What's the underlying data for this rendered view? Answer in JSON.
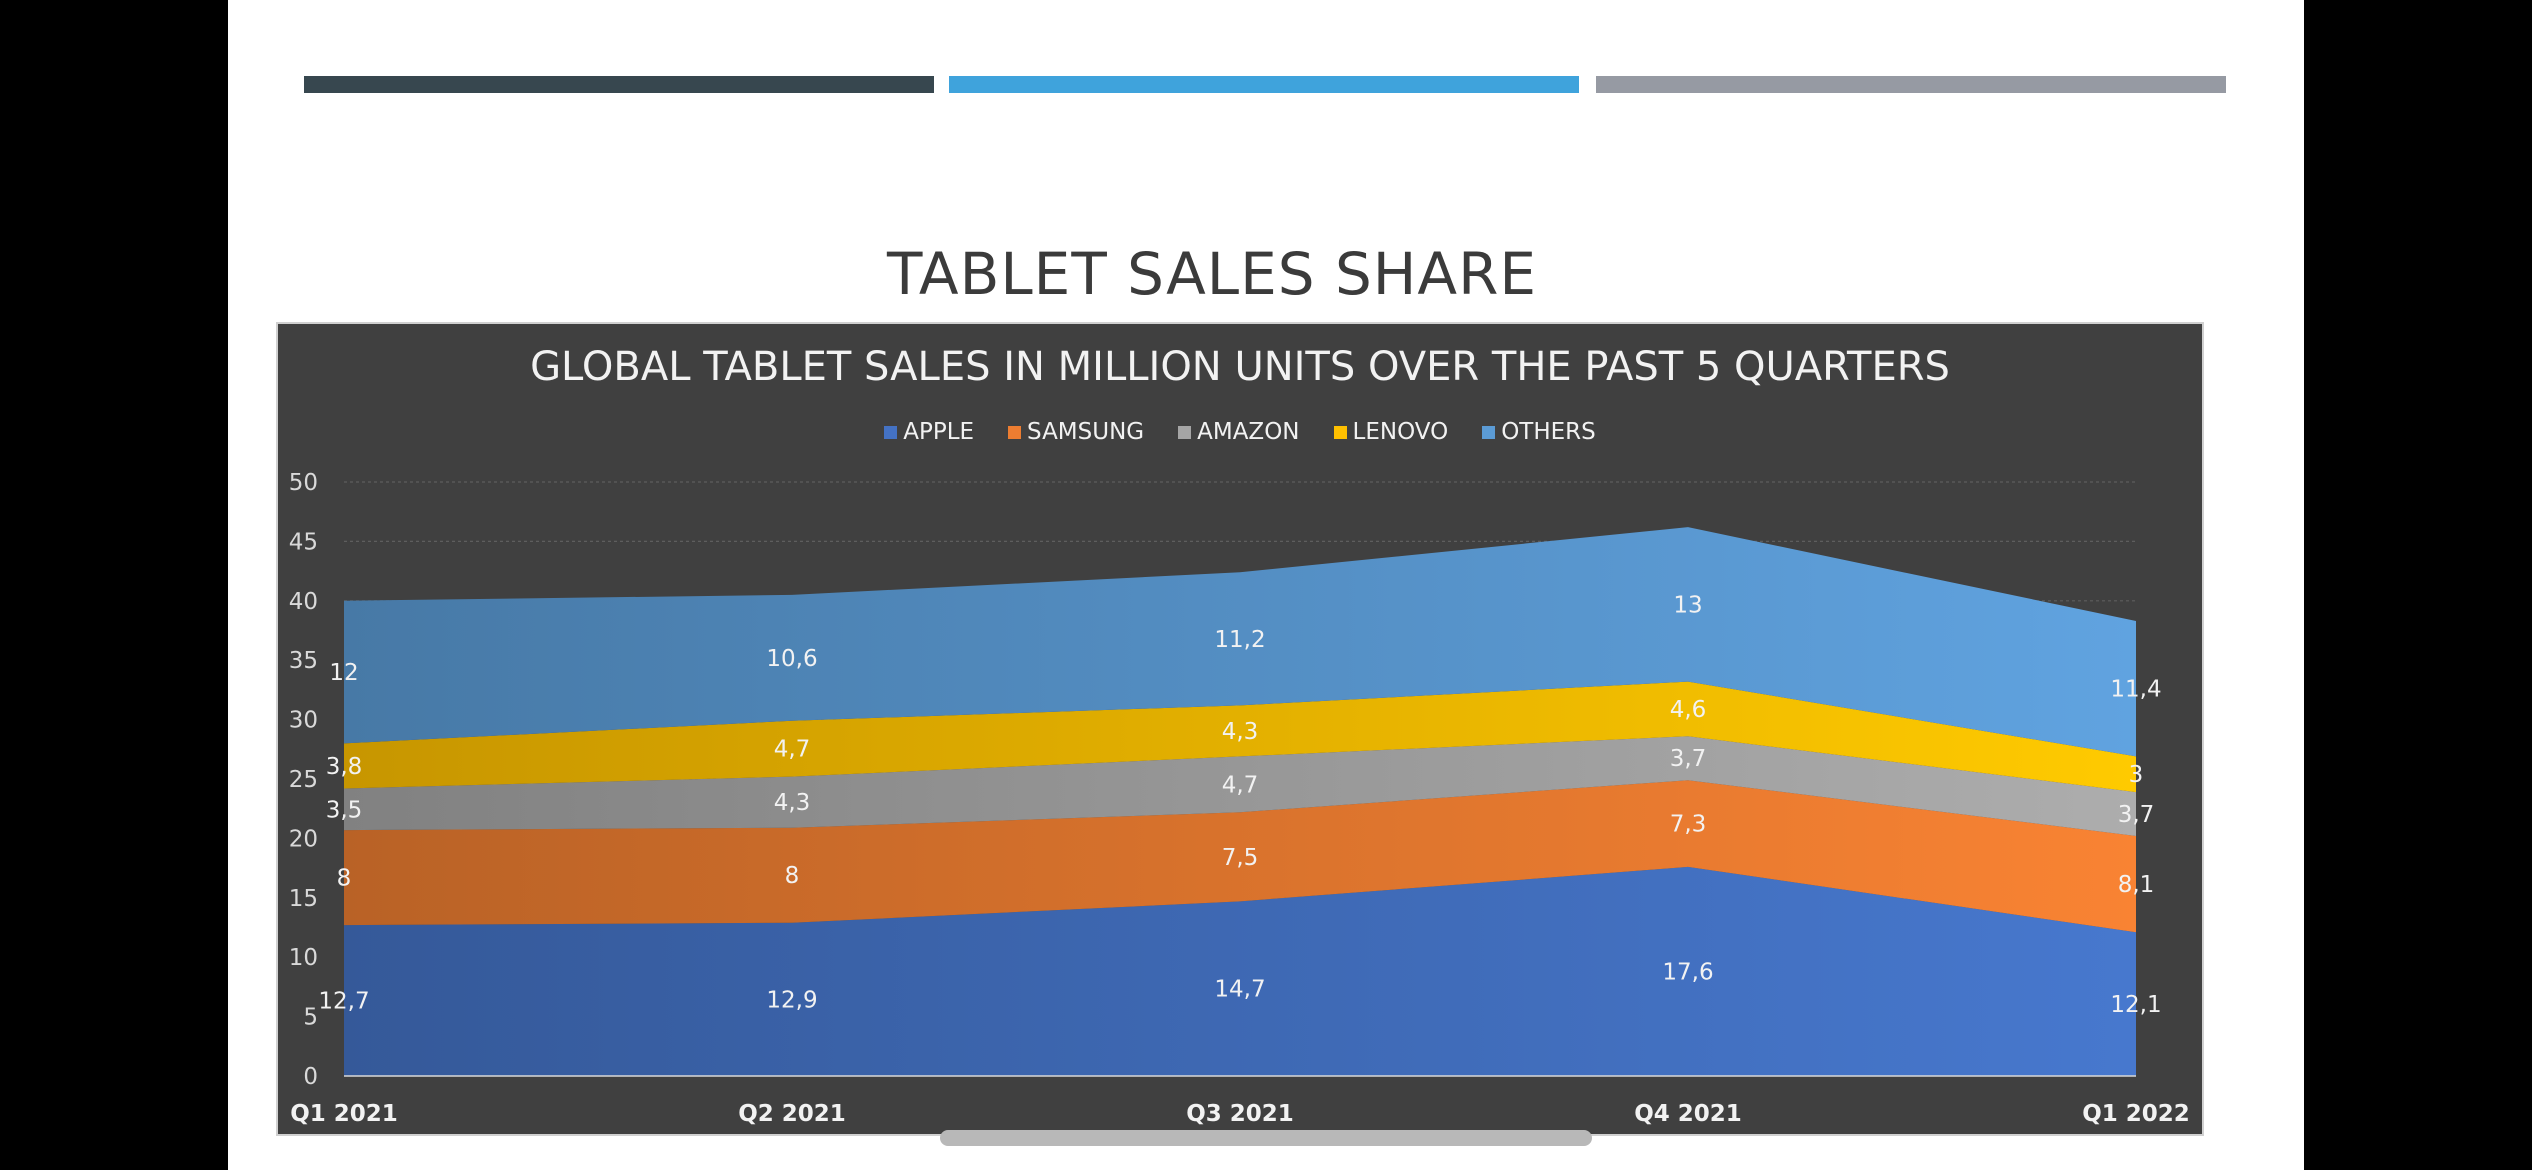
{
  "slide": {
    "title": "TABLET SALES SHARE",
    "accent_bars": [
      "#37474f",
      "#3fa3dc",
      "#969aa3"
    ]
  },
  "chart_data": {
    "type": "area",
    "stacked": true,
    "title": "GLOBAL TABLET SALES IN MILLION UNITS OVER THE PAST 5 QUARTERS",
    "categories": [
      "Q1 2021",
      "Q2 2021",
      "Q3 2021",
      "Q4 2021",
      "Q1 2022"
    ],
    "ylim": [
      0,
      50
    ],
    "yticks": [
      0,
      5,
      10,
      15,
      20,
      25,
      30,
      35,
      40,
      45,
      50
    ],
    "legend_position": "top",
    "grid": true,
    "series": [
      {
        "name": "APPLE",
        "color": "#4472c4",
        "values": [
          12.7,
          12.9,
          14.7,
          17.6,
          12.1
        ],
        "labels": [
          "12,7",
          "12,9",
          "14,7",
          "17,6",
          "12,1"
        ]
      },
      {
        "name": "SAMSUNG",
        "color": "#ed7d31",
        "values": [
          8,
          8,
          7.5,
          7.3,
          8.1
        ],
        "labels": [
          "8",
          "8",
          "7,5",
          "7,3",
          "8,1"
        ]
      },
      {
        "name": "AMAZON",
        "color": "#a5a5a5",
        "values": [
          3.5,
          4.3,
          4.7,
          3.7,
          3.7
        ],
        "labels": [
          "3,5",
          "4,3",
          "4,7",
          "3,7",
          "3,7"
        ]
      },
      {
        "name": "LENOVO",
        "color": "#ffc000",
        "values": [
          3.8,
          4.7,
          4.3,
          4.6,
          3
        ],
        "labels": [
          "3,8",
          "4,7",
          "4,3",
          "4,6",
          "3"
        ]
      },
      {
        "name": "OTHERS",
        "color": "#5b9bd5",
        "values": [
          12,
          10.6,
          11.2,
          13,
          11.4
        ],
        "labels": [
          "12",
          "10,6",
          "11,2",
          "13",
          "11,4"
        ]
      }
    ]
  }
}
